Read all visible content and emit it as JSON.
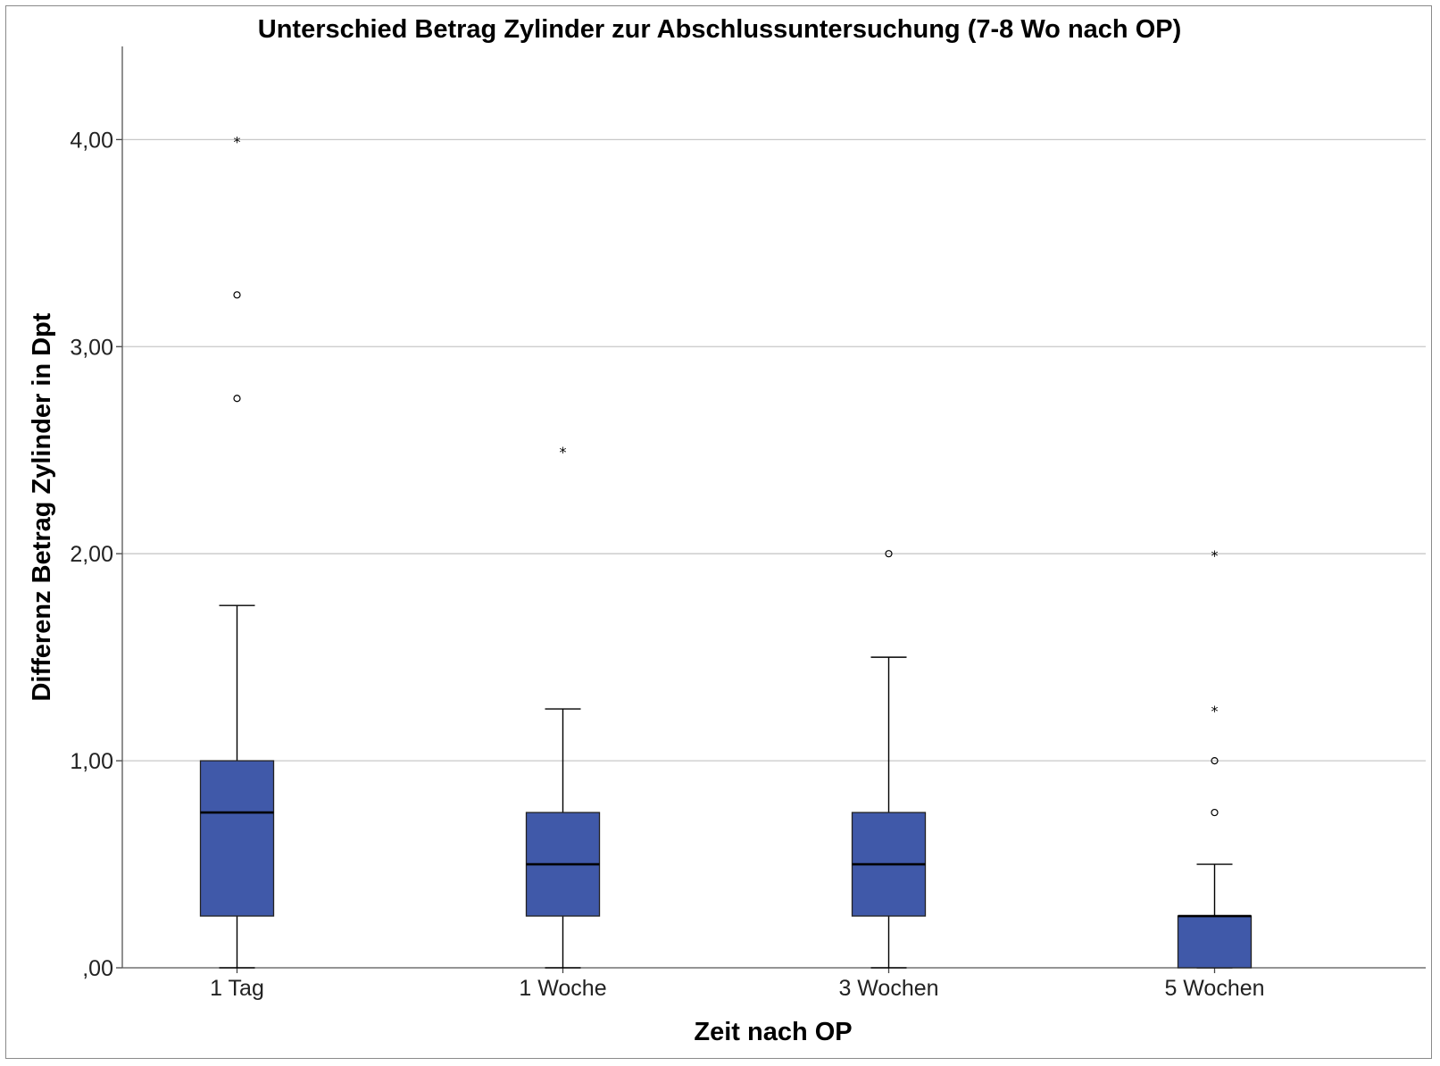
{
  "chart_data": {
    "type": "boxplot",
    "title": "Unterschied Betrag Zylinder zur Abschlussuntersuchung (7-8 Wo nach OP)",
    "xlabel": "Zeit nach OP",
    "ylabel": "Differenz Betrag Zylinder in Dpt",
    "ylim": [
      0,
      4.45
    ],
    "yticks": [
      0,
      1,
      2,
      3,
      4
    ],
    "ytick_labels": [
      ",00",
      "1,00",
      "2,00",
      "3,00",
      "4,00"
    ],
    "grid": true,
    "categories": [
      "1 Tag",
      "1 Woche",
      "3 Wochen",
      "5 Wochen"
    ],
    "boxes": [
      {
        "category": "1 Tag",
        "whisker_low": 0,
        "q1": 0.25,
        "median": 0.75,
        "q3": 1.0,
        "whisker_high": 1.75,
        "outliers": [
          {
            "value": 2.75,
            "marker": "circle"
          },
          {
            "value": 3.25,
            "marker": "circle"
          },
          {
            "value": 4.0,
            "marker": "star"
          }
        ]
      },
      {
        "category": "1 Woche",
        "whisker_low": 0,
        "q1": 0.25,
        "median": 0.5,
        "q3": 0.75,
        "whisker_high": 1.25,
        "outliers": [
          {
            "value": 2.5,
            "marker": "star"
          }
        ]
      },
      {
        "category": "3 Wochen",
        "whisker_low": 0,
        "q1": 0.25,
        "median": 0.5,
        "q3": 0.75,
        "whisker_high": 1.5,
        "outliers": [
          {
            "value": 2.0,
            "marker": "circle"
          }
        ]
      },
      {
        "category": "5 Wochen",
        "whisker_low": 0,
        "q1": 0,
        "median": 0.25,
        "q3": 0.25,
        "whisker_high": 0.5,
        "outliers": [
          {
            "value": 0.75,
            "marker": "circle"
          },
          {
            "value": 1.0,
            "marker": "circle"
          },
          {
            "value": 1.25,
            "marker": "star"
          },
          {
            "value": 2.0,
            "marker": "star"
          }
        ]
      }
    ],
    "box_color": "#4059a9"
  }
}
